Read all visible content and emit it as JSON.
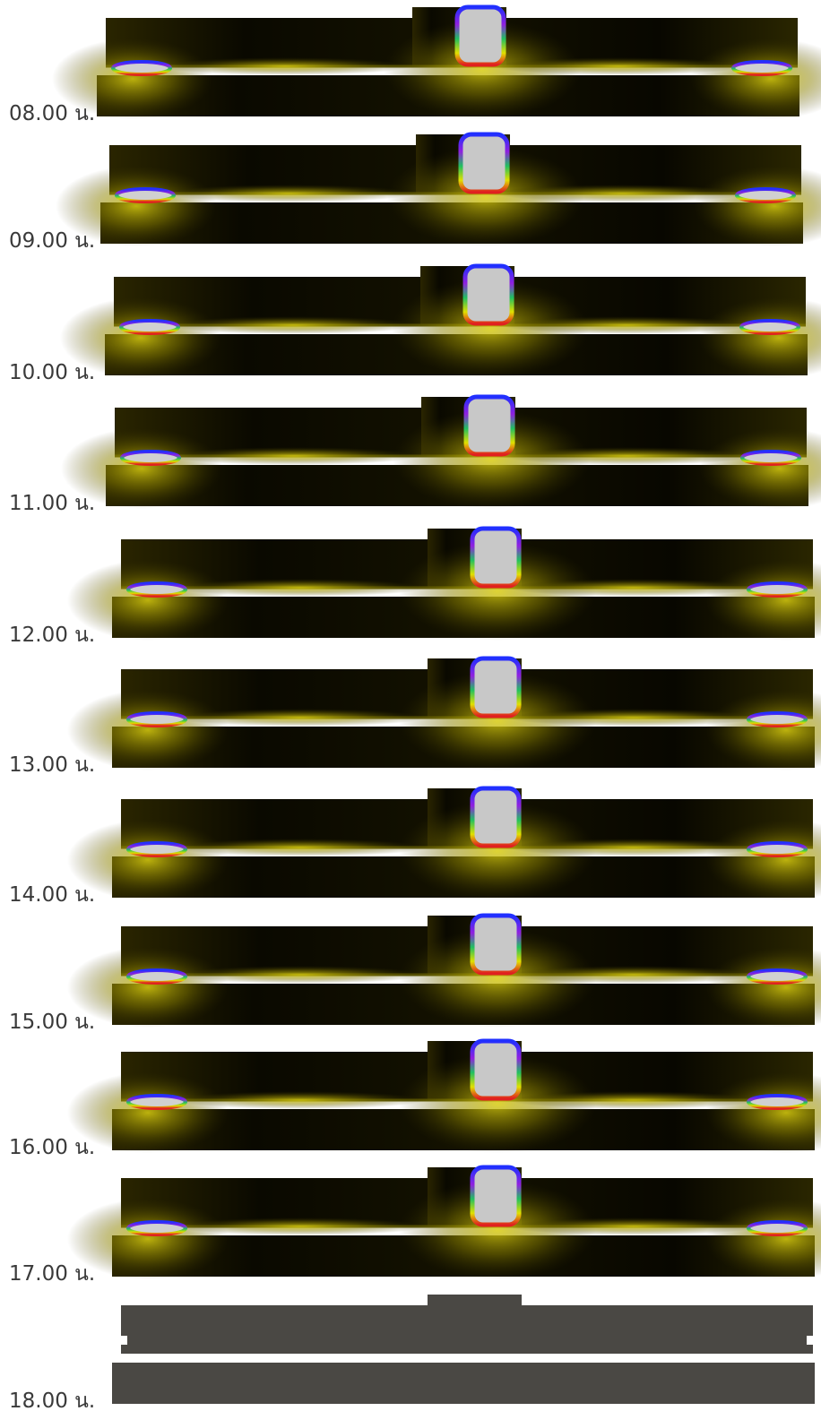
{
  "panels": [
    {
      "label": "08.00 น."
    },
    {
      "label": "09.00 น."
    },
    {
      "label": "10.00 น."
    },
    {
      "label": "11.00 น."
    },
    {
      "label": "12.00 น."
    },
    {
      "label": "13.00 น."
    },
    {
      "label": "14.00 น."
    },
    {
      "label": "15.00 น."
    },
    {
      "label": "16.00 น."
    },
    {
      "label": "17.00 น."
    },
    {
      "label": "18.00 น."
    }
  ]
}
